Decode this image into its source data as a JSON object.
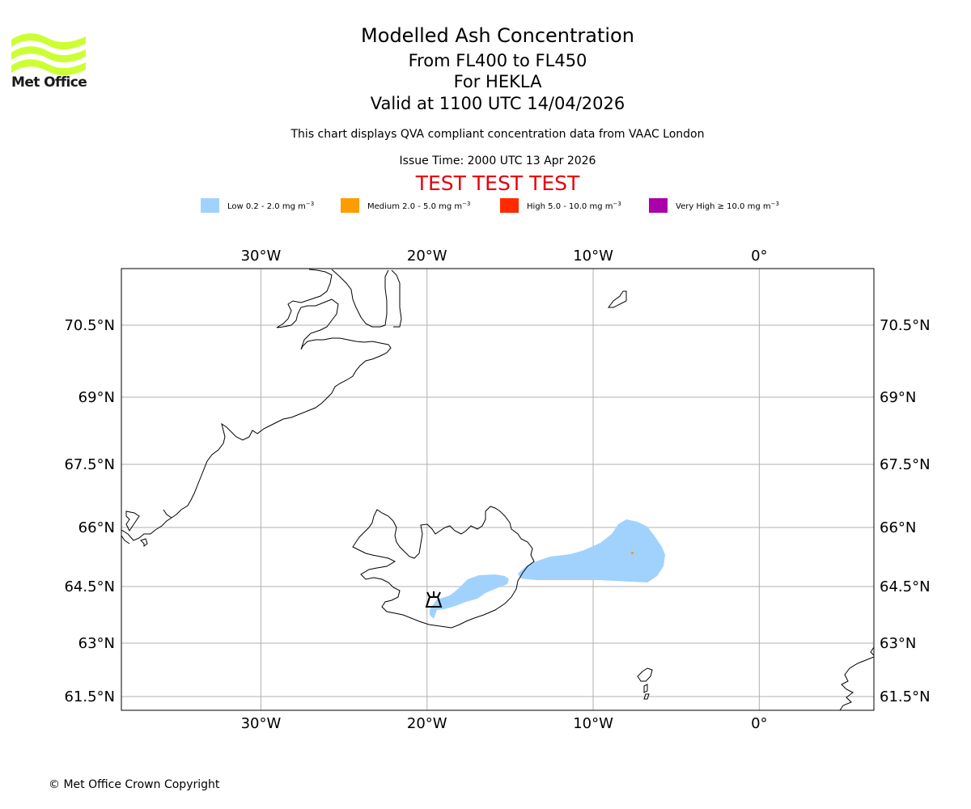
{
  "branding": {
    "logo_text": "Met Office",
    "logo_color": "#ccff33",
    "logo_icon": "met-office-wave-logo"
  },
  "titles": {
    "title": "Modelled Ash Concentration",
    "levels": "From FL400 to FL450",
    "volcano": "For HEKLA",
    "valid": "Valid at 1100 UTC 14/04/2026",
    "subtitle": "This chart displays QVA compliant concentration data from VAAC London",
    "issue_time": "Issue Time: 2000 UTC 13 Apr 2026",
    "test_banner": "TEST TEST TEST",
    "test_color": "#e8000b"
  },
  "legend": [
    {
      "label": "Low 0.2 - 2.0 mg m",
      "color": "#a1d2fe"
    },
    {
      "label": "Medium 2.0 - 5.0 mg m",
      "color": "#ff9c00"
    },
    {
      "label": "High 5.0 - 10.0 mg m",
      "color": "#ff2a00"
    },
    {
      "label": "Very High ≥ 10.0 mg m",
      "color": "#aa00aa"
    }
  ],
  "legend_unit_exponent": "−3",
  "map": {
    "lon_range": [
      -38.4,
      6.9
    ],
    "lat_range": [
      61.2,
      71.7
    ],
    "lon_ticks": [
      {
        "value": -30,
        "label": "30°W"
      },
      {
        "value": -20,
        "label": "20°W"
      },
      {
        "value": -10,
        "label": "10°W"
      },
      {
        "value": 0,
        "label": "0°"
      }
    ],
    "lat_ticks": [
      {
        "value": 70.5,
        "label": "70.5°N"
      },
      {
        "value": 69,
        "label": "69°N"
      },
      {
        "value": 67.5,
        "label": "67.5°N"
      },
      {
        "value": 66,
        "label": "66°N"
      },
      {
        "value": 64.5,
        "label": "64.5°N"
      },
      {
        "value": 63,
        "label": "63°N"
      },
      {
        "value": 61.5,
        "label": "61.5°N"
      }
    ],
    "grid": true,
    "volcano_marker": {
      "name": "HEKLA",
      "lon": -19.7,
      "lat": 64.0,
      "icon": "volcano-icon"
    },
    "ash_level_low_color": "#a1d2fe",
    "ash_level_medium_color": "#ff9c00"
  },
  "footer": {
    "copyright": "© Met Office Crown Copyright"
  }
}
